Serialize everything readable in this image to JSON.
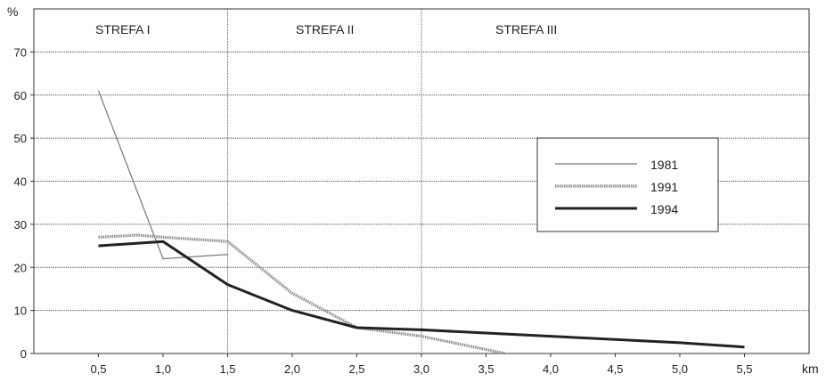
{
  "chart_data": {
    "type": "line",
    "ylabel": "%",
    "xlabel": "km",
    "ylim": [
      0,
      80
    ],
    "xlim": [
      0,
      6
    ],
    "y_ticks": [
      0,
      10,
      20,
      30,
      40,
      50,
      60,
      70
    ],
    "x_ticks": [
      {
        "value": 0.5,
        "label": "0,5"
      },
      {
        "value": 1.0,
        "label": "1,0"
      },
      {
        "value": 1.5,
        "label": "1,5"
      },
      {
        "value": 2.0,
        "label": "2,0"
      },
      {
        "value": 2.5,
        "label": "2,5"
      },
      {
        "value": 3.0,
        "label": "3,0"
      },
      {
        "value": 3.5,
        "label": "3,5"
      },
      {
        "value": 4.0,
        "label": "4,0"
      },
      {
        "value": 4.5,
        "label": "4,5"
      },
      {
        "value": 5.0,
        "label": "5,0"
      },
      {
        "value": 5.5,
        "label": "5,5"
      }
    ],
    "grid": true,
    "zones": [
      {
        "label": "STREFA I",
        "start": 0,
        "end": 1.5
      },
      {
        "label": "STREFA II",
        "start": 1.5,
        "end": 3.0
      },
      {
        "label": "STREFA III",
        "start": 3.0,
        "end": 6.0
      }
    ],
    "legend_position": "right",
    "series": [
      {
        "name": "1981",
        "color": "#777777",
        "style": "thin",
        "points": [
          [
            0.5,
            61
          ],
          [
            1.0,
            22
          ],
          [
            1.5,
            23
          ]
        ]
      },
      {
        "name": "1991",
        "color": "#8a8a8a",
        "style": "hatched",
        "points": [
          [
            0.5,
            27
          ],
          [
            0.8,
            27.5
          ],
          [
            1.0,
            27
          ],
          [
            1.5,
            26
          ],
          [
            2.0,
            14
          ],
          [
            2.5,
            6
          ],
          [
            3.0,
            4
          ],
          [
            3.65,
            0
          ]
        ]
      },
      {
        "name": "1994",
        "color": "#222222",
        "style": "thick",
        "points": [
          [
            0.5,
            25
          ],
          [
            1.0,
            26
          ],
          [
            1.5,
            16
          ],
          [
            2.0,
            10
          ],
          [
            2.5,
            6
          ],
          [
            3.0,
            5.5
          ],
          [
            4.0,
            4
          ],
          [
            5.0,
            2.5
          ],
          [
            5.5,
            1.5
          ]
        ]
      }
    ]
  }
}
